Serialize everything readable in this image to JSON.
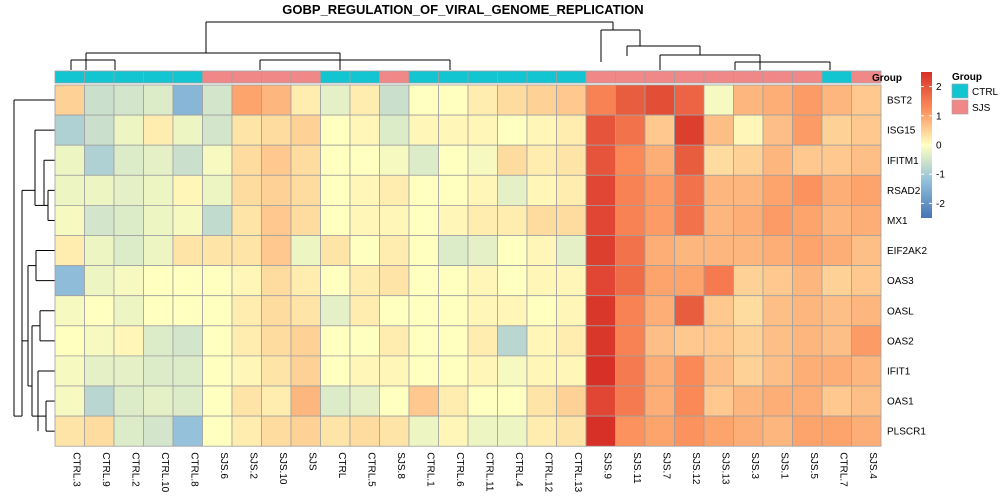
{
  "chart_data": {
    "type": "heatmap",
    "title": "GOBP_REGULATION_OF_VIRAL_GENOME_REPLICATION",
    "columns": [
      "CTRL.3",
      "CTRL.9",
      "CTRL.2",
      "CTRL.10",
      "CTRL.8",
      "SJS.6",
      "SJS.2",
      "SJS.10",
      "SJS",
      "CTRL",
      "CTRL.5",
      "SJS.8",
      "CTRL.1",
      "CTRL.6",
      "CTRL.11",
      "CTRL.4",
      "CTRL.12",
      "CTRL.13",
      "SJS.9",
      "SJS.11",
      "SJS.7",
      "SJS.12",
      "SJS.13",
      "SJS.3",
      "SJS.1",
      "SJS.5",
      "CTRL.7",
      "SJS.4"
    ],
    "groups": [
      "CTRL",
      "CTRL",
      "CTRL",
      "CTRL",
      "CTRL",
      "SJS",
      "SJS",
      "SJS",
      "SJS",
      "CTRL",
      "CTRL",
      "SJS",
      "CTRL",
      "CTRL",
      "CTRL",
      "CTRL",
      "CTRL",
      "CTRL",
      "SJS",
      "SJS",
      "SJS",
      "SJS",
      "SJS",
      "SJS",
      "SJS",
      "SJS",
      "CTRL",
      "SJS"
    ],
    "rows": [
      "BST2",
      "ISG15",
      "IFITM1",
      "RSAD2",
      "MX1",
      "EIF2AK2",
      "OAS3",
      "OASL",
      "OAS2",
      "IFIT1",
      "OAS1",
      "PLSCR1"
    ],
    "values": [
      [
        0.5,
        -0.6,
        -0.5,
        -0.4,
        -1.4,
        -0.5,
        1.0,
        0.8,
        0.2,
        -0.3,
        0.2,
        -0.6,
        0.0,
        0.0,
        0.2,
        0.4,
        0.5,
        0.6,
        1.4,
        1.9,
        2.1,
        1.8,
        -0.1,
        0.8,
        0.9,
        1.1,
        0.8,
        0.6
      ],
      [
        -0.9,
        -0.6,
        -0.2,
        0.2,
        -0.2,
        -0.5,
        0.3,
        0.4,
        0.5,
        0.0,
        0.1,
        -0.4,
        0.1,
        0.1,
        0.1,
        0.0,
        0.1,
        0.2,
        2.0,
        1.6,
        0.6,
        2.3,
        0.7,
        0.1,
        0.7,
        1.1,
        0.5,
        0.6
      ],
      [
        -0.2,
        -0.9,
        -0.4,
        -0.3,
        -0.6,
        -0.1,
        0.4,
        0.6,
        0.4,
        0.0,
        0.0,
        -0.1,
        -0.4,
        0.0,
        -0.1,
        0.4,
        0.2,
        0.3,
        2.0,
        1.3,
        0.9,
        1.9,
        0.4,
        0.5,
        0.8,
        0.6,
        0.6,
        0.7
      ],
      [
        -0.2,
        -0.2,
        -0.3,
        -0.2,
        0.1,
        -0.2,
        0.4,
        0.5,
        0.4,
        0.0,
        0.1,
        0.2,
        0.0,
        0.0,
        0.1,
        -0.3,
        0.1,
        0.2,
        2.2,
        1.4,
        1.1,
        1.6,
        0.8,
        0.8,
        1.0,
        1.2,
        0.9,
        1.0
      ],
      [
        -0.1,
        -0.5,
        -0.4,
        -0.2,
        -0.1,
        -0.7,
        0.3,
        0.6,
        0.4,
        0.0,
        0.1,
        0.1,
        0.0,
        0.1,
        0.2,
        0.2,
        0.4,
        0.4,
        2.2,
        1.4,
        1.1,
        1.6,
        0.8,
        0.9,
        1.1,
        1.0,
        0.8,
        0.9
      ],
      [
        0.2,
        -0.2,
        -0.4,
        -0.2,
        0.3,
        0.3,
        0.3,
        0.6,
        -0.2,
        0.3,
        0.0,
        0.2,
        0.0,
        -0.4,
        -0.3,
        0.0,
        0.1,
        -0.3,
        2.3,
        1.6,
        0.9,
        0.8,
        0.8,
        0.8,
        0.9,
        1.0,
        0.9,
        0.7
      ],
      [
        -1.3,
        -0.2,
        -0.1,
        0.0,
        0.0,
        0.0,
        0.1,
        0.4,
        0.2,
        0.0,
        0.2,
        0.3,
        0.0,
        0.0,
        0.1,
        0.0,
        0.1,
        0.1,
        2.2,
        1.7,
        1.0,
        1.0,
        1.5,
        0.5,
        0.6,
        0.8,
        0.5,
        0.6
      ],
      [
        -0.1,
        0.0,
        -0.2,
        0.0,
        0.0,
        0.0,
        0.2,
        0.4,
        0.3,
        -0.3,
        0.2,
        0.0,
        0.0,
        0.0,
        0.1,
        0.1,
        0.0,
        0.1,
        2.4,
        1.4,
        0.9,
        1.9,
        0.6,
        0.4,
        0.7,
        0.8,
        0.7,
        0.8
      ],
      [
        0.0,
        -0.1,
        0.1,
        -0.4,
        -0.5,
        0.0,
        0.2,
        0.4,
        0.5,
        0.0,
        0.0,
        0.2,
        0.0,
        0.0,
        0.2,
        -0.8,
        0.1,
        0.2,
        2.4,
        1.4,
        0.7,
        0.6,
        0.6,
        0.5,
        0.7,
        0.8,
        0.7,
        1.1
      ],
      [
        -0.1,
        -0.3,
        -0.3,
        -0.4,
        -0.4,
        0.0,
        0.1,
        0.3,
        0.5,
        0.0,
        0.1,
        0.1,
        0.0,
        0.0,
        0.1,
        -0.1,
        0.1,
        0.1,
        2.5,
        1.5,
        0.9,
        1.3,
        0.7,
        0.5,
        0.7,
        0.9,
        0.9,
        0.8
      ],
      [
        -0.1,
        -0.8,
        -0.4,
        -0.3,
        -0.4,
        0.0,
        0.3,
        0.2,
        0.8,
        -0.4,
        -0.3,
        0.0,
        0.6,
        0.2,
        0.0,
        0.0,
        0.3,
        0.5,
        2.2,
        1.5,
        0.9,
        1.3,
        0.6,
        0.8,
        0.9,
        0.9,
        0.6,
        0.7
      ],
      [
        0.3,
        0.4,
        -0.4,
        -0.5,
        -1.2,
        0.0,
        0.2,
        0.4,
        0.5,
        0.3,
        0.4,
        0.3,
        -0.2,
        0.1,
        -0.2,
        -0.2,
        0.2,
        0.3,
        2.8,
        1.2,
        1.0,
        1.2,
        1.0,
        0.9,
        0.8,
        1.0,
        1.0,
        0.9
      ]
    ],
    "zlim": [
      -2.5,
      2.5
    ],
    "colorbar_ticks": [
      2,
      1,
      0,
      -1,
      -2
    ],
    "annotation_title": "Group",
    "legend_title": "Group",
    "legend_entries": [
      {
        "name": "CTRL",
        "color": "#13c5d0"
      },
      {
        "name": "SJS",
        "color": "#f08888"
      }
    ],
    "colors": {
      "low": "#4575b4",
      "mid": "#ffffbf",
      "high": "#d73027",
      "grid": "#a0a0a0"
    }
  }
}
